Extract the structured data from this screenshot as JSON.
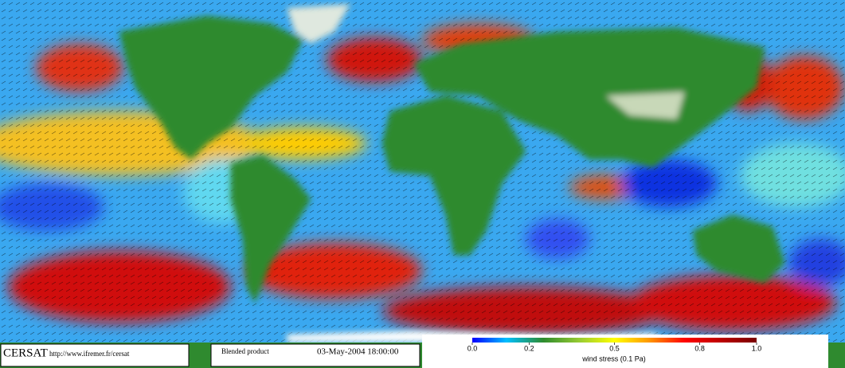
{
  "footer": {
    "logo": "CERSAT",
    "url": "http://www.ifremer.fr/cersat",
    "product": "Blended product",
    "date": "03-May-2004 18:00:00"
  },
  "colorbar": {
    "label": "wind stress (0.1 Pa)",
    "lim": [
      0,
      1
    ],
    "ticks": [
      {
        "value": 0,
        "label": "0.0"
      },
      0.2,
      0.5,
      0.8,
      {
        "value": 1,
        "label": "1.0"
      }
    ]
  }
}
